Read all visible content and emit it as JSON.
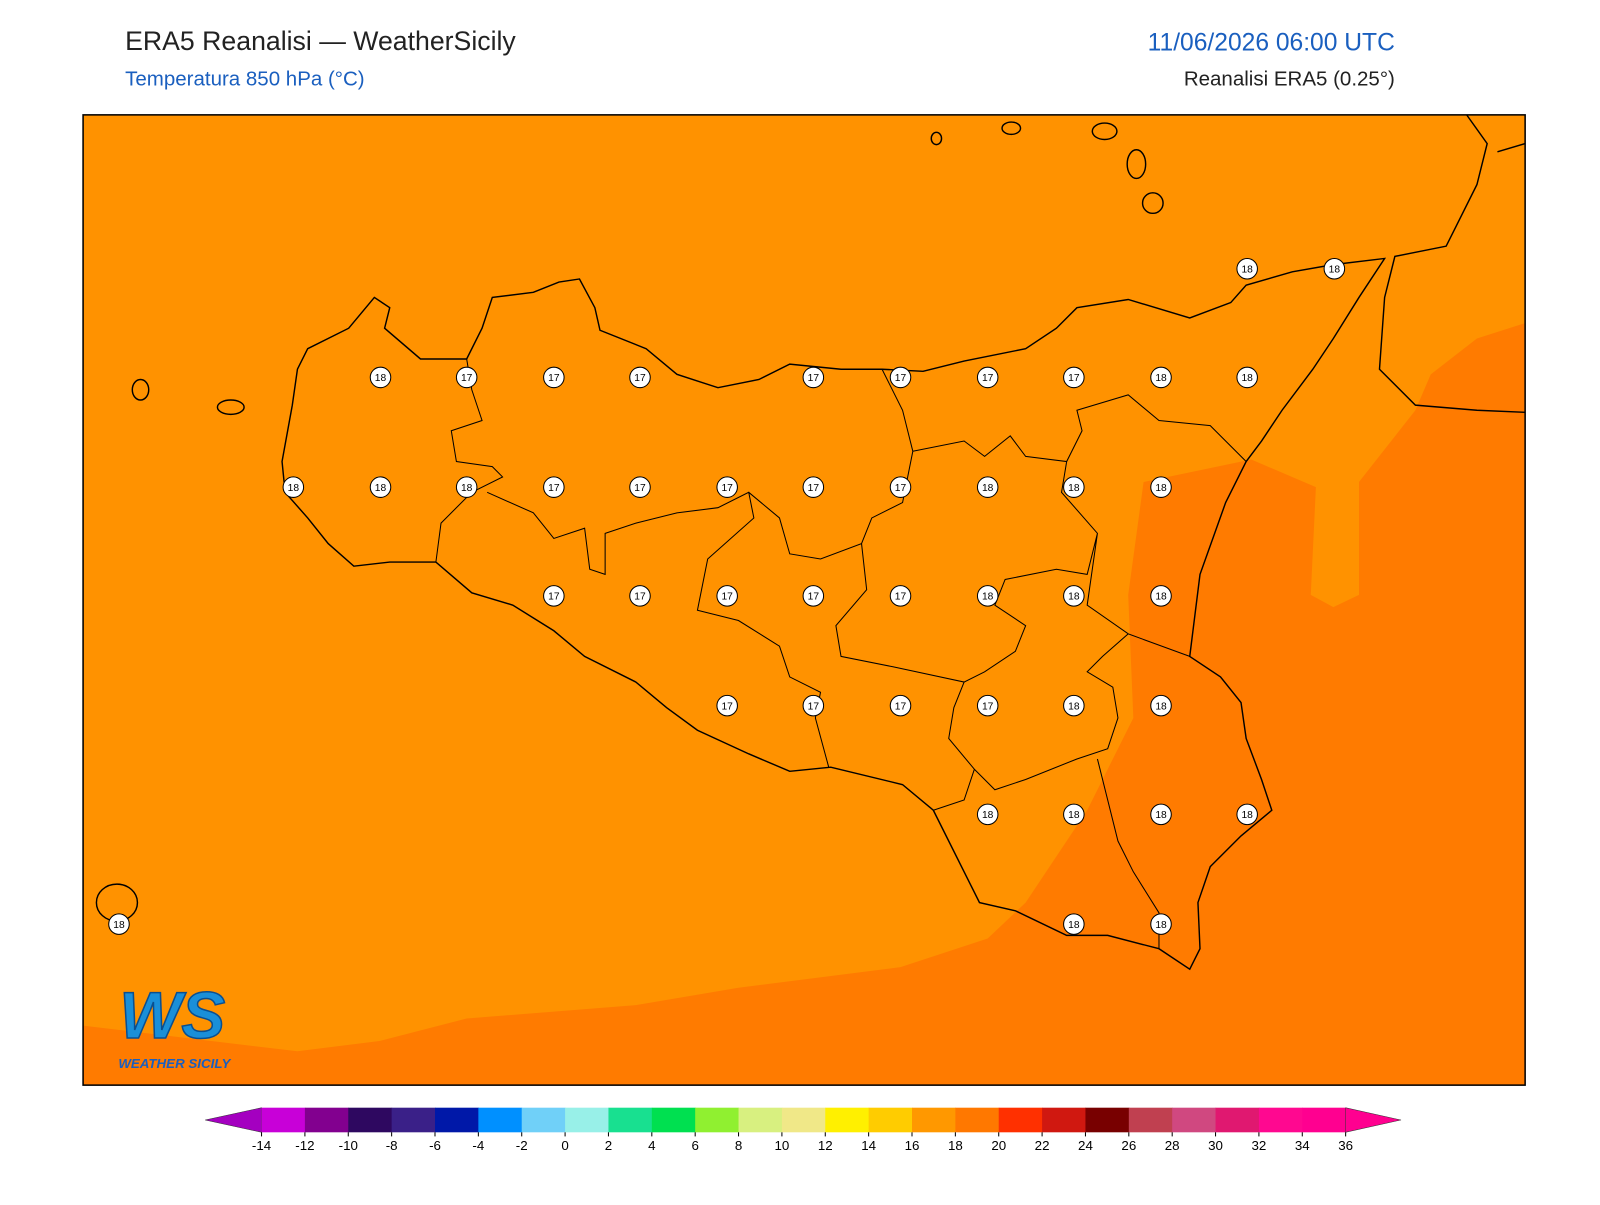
{
  "header": {
    "title": "ERA5 Reanalisi — WeatherSicily",
    "subtitle": "Temperatura 850 hPa (°C)",
    "datetime": "11/06/2026 06:00 UTC",
    "source": "Reanalisi ERA5 (0.25°)"
  },
  "map": {
    "points": [
      18,
      18,
      18,
      17,
      17,
      17,
      17,
      17,
      17,
      17,
      18,
      18,
      18,
      18,
      18,
      17,
      17,
      17,
      17,
      17,
      18,
      18,
      18,
      17,
      17,
      17,
      17,
      17,
      18,
      18,
      18,
      17,
      17,
      17,
      17,
      18,
      18,
      18,
      18,
      18,
      18,
      18,
      18,
      18
    ],
    "fill_colors": [
      "#ff9200",
      "#ff7b00"
    ]
  },
  "colorbar": {
    "ticks": [
      -14,
      -12,
      -10,
      -8,
      -6,
      -4,
      -2,
      0,
      2,
      4,
      6,
      8,
      10,
      12,
      14,
      16,
      18,
      20,
      22,
      24,
      26,
      28,
      30,
      32,
      34,
      36
    ],
    "colors": [
      "#a400c0",
      "#c800d8",
      "#82008f",
      "#2e0860",
      "#3a2088",
      "#0018a8",
      "#0090ff",
      "#70d0f8",
      "#98f0e8",
      "#18e090",
      "#00e050",
      "#90f030",
      "#d8f080",
      "#f0e888",
      "#fff000",
      "#ffcc00",
      "#ff9800",
      "#ff7800",
      "#ff3000",
      "#d01810",
      "#780000",
      "#c04050",
      "#d04880",
      "#e01870",
      "#ff0890",
      "#ff0090",
      "#ff0090"
    ]
  },
  "logo": {
    "mark": "WS",
    "name": "WEATHER SICILY"
  }
}
